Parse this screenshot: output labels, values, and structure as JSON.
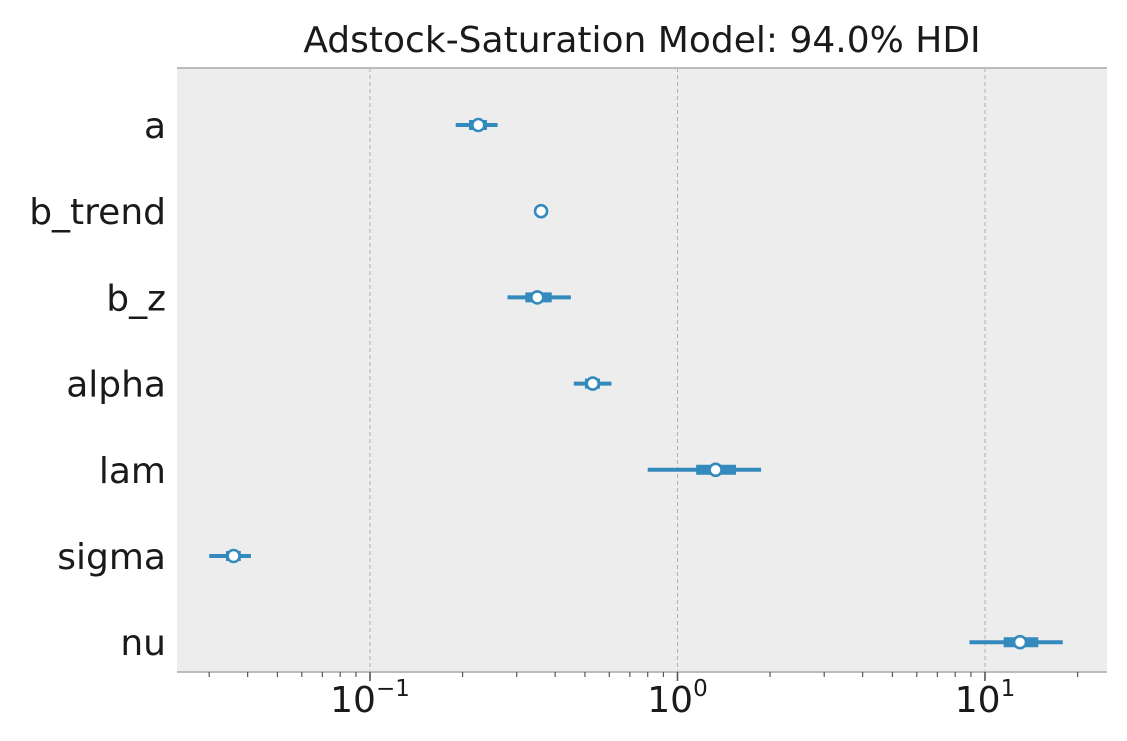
{
  "chart_data": {
    "type": "forest",
    "title": "Adstock-Saturation Model: 94.0% HDI",
    "x_scale": "log",
    "xlim": [
      0.0235,
      24.5
    ],
    "xticks": [
      {
        "value": 0.1,
        "base": "10",
        "exponent": "−1"
      },
      {
        "value": 1,
        "base": "10",
        "exponent": "0"
      },
      {
        "value": 10,
        "base": "10",
        "exponent": "1"
      }
    ],
    "grid": "vertical dashed at major ticks",
    "parameters": [
      {
        "name": "a",
        "point": 0.225,
        "hdi_94": [
          0.19,
          0.26
        ],
        "iqr": [
          0.21,
          0.24
        ]
      },
      {
        "name": "b_trend",
        "point": 0.36,
        "hdi_94": [
          0.355,
          0.365
        ],
        "iqr": [
          0.358,
          0.362
        ]
      },
      {
        "name": "b_z",
        "point": 0.35,
        "hdi_94": [
          0.28,
          0.45
        ],
        "iqr": [
          0.32,
          0.39
        ]
      },
      {
        "name": "alpha",
        "point": 0.53,
        "hdi_94": [
          0.46,
          0.61
        ],
        "iqr": [
          0.5,
          0.56
        ]
      },
      {
        "name": "lam",
        "point": 1.33,
        "hdi_94": [
          0.8,
          1.87
        ],
        "iqr": [
          1.15,
          1.55
        ]
      },
      {
        "name": "sigma",
        "point": 0.036,
        "hdi_94": [
          0.03,
          0.041
        ],
        "iqr": [
          0.034,
          0.038
        ]
      },
      {
        "name": "nu",
        "point": 13.0,
        "hdi_94": [
          8.9,
          17.9
        ],
        "iqr": [
          11.5,
          14.9
        ]
      }
    ],
    "colors": {
      "series": "#348abd",
      "panel_bg": "#ededed",
      "grid": "#b0b0b0",
      "spine": "#bcbcbc",
      "marker_fill": "#ffffff"
    }
  }
}
